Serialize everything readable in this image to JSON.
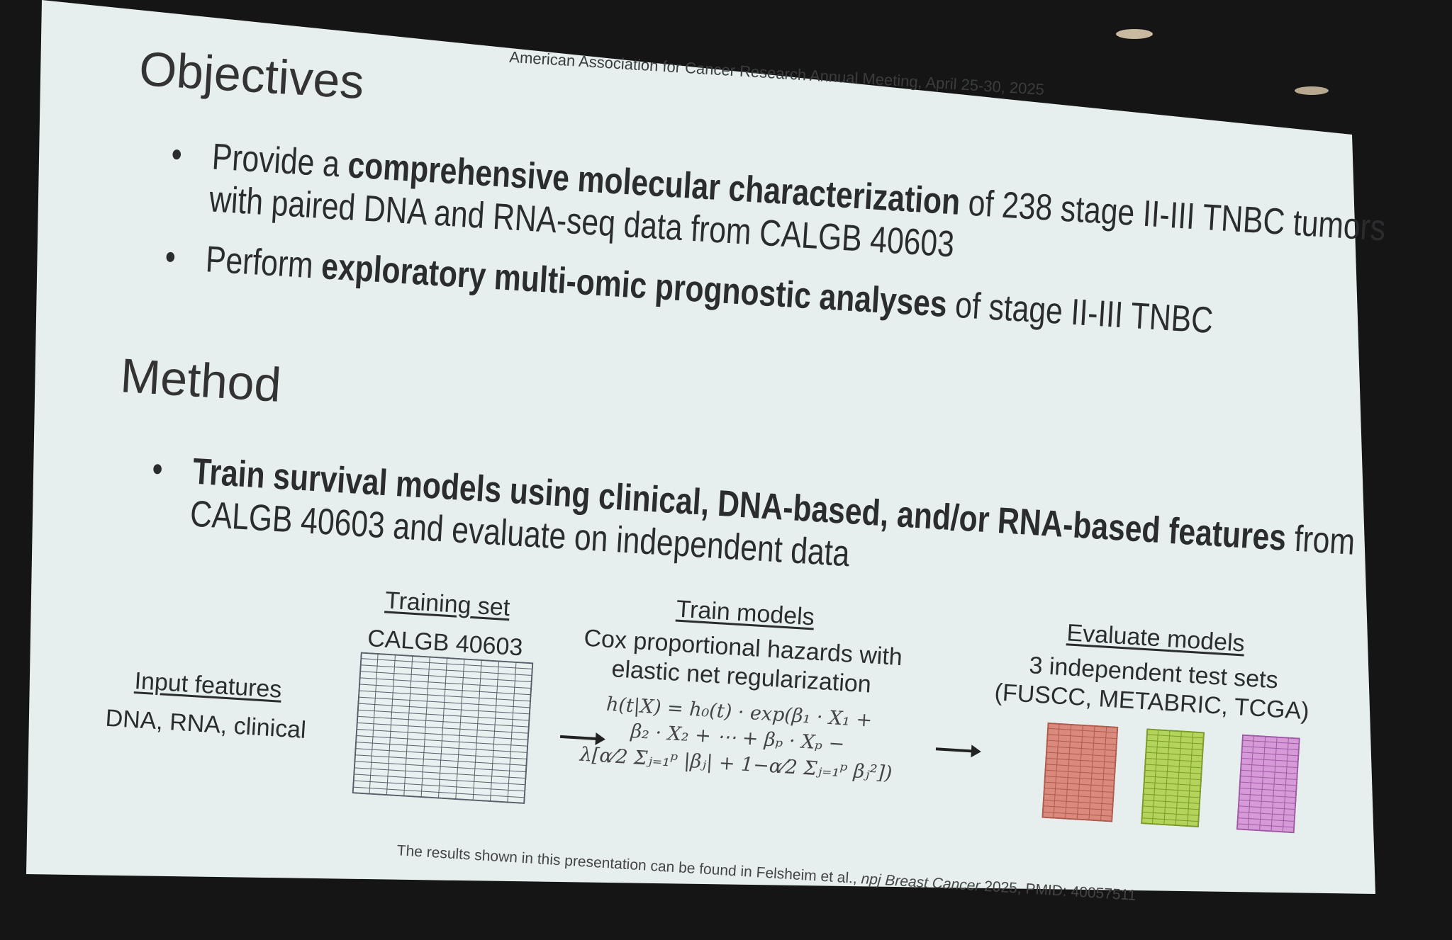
{
  "header": {
    "conference": "American Association for Cancer Research Annual Meeting, April 25-30, 2025"
  },
  "objectives": {
    "title": "Objectives",
    "bullets": [
      {
        "runs": [
          {
            "text": "Provide a ",
            "bold": false
          },
          {
            "text": "comprehensive molecular characterization",
            "bold": true
          },
          {
            "text": " of 238 stage II-III TNBC tumors with paired DNA and RNA-seq data from CALGB 40603",
            "bold": false
          }
        ]
      },
      {
        "runs": [
          {
            "text": "Perform ",
            "bold": false
          },
          {
            "text": "exploratory multi-omic prognostic analyses",
            "bold": true
          },
          {
            "text": " of stage II-III TNBC",
            "bold": false
          }
        ]
      }
    ]
  },
  "method": {
    "title": "Method",
    "bullets": [
      {
        "runs": [
          {
            "text": "Train survival models using clinical, DNA-based, and/or RNA-based features",
            "bold": true
          },
          {
            "text": " from CALGB 40603 and evaluate on independent data",
            "bold": false
          }
        ]
      }
    ]
  },
  "diagram": {
    "input": {
      "title": "Input features",
      "text": "DNA, RNA, clinical"
    },
    "training": {
      "title": "Training set",
      "text": "CALGB 40603"
    },
    "train_models": {
      "title": "Train models",
      "lines": [
        "Cox proportional hazards with",
        "elastic net regularization"
      ],
      "formula": [
        "h(t|X) = h₀(t) · exp(β₁ · X₁ +",
        "β₂ · X₂ + ⋯ + βₚ · Xₚ −",
        "λ[α⁄2 Σⱼ₌₁ᵖ |βⱼ| + 1−α⁄2 Σⱼ₌₁ᵖ βⱼ²])"
      ]
    },
    "evaluate": {
      "title": "Evaluate models",
      "lines": [
        "3 independent test sets",
        "(FUSCC, METABRIC, TCGA)"
      ]
    }
  },
  "footer": {
    "runs": [
      {
        "text": "The results shown in this presentation can be found in Felsheim et al., ",
        "italic": false
      },
      {
        "text": "npj Breast Cancer",
        "italic": true
      },
      {
        "text": " 2025, PMID: 40057511",
        "italic": false
      }
    ]
  }
}
